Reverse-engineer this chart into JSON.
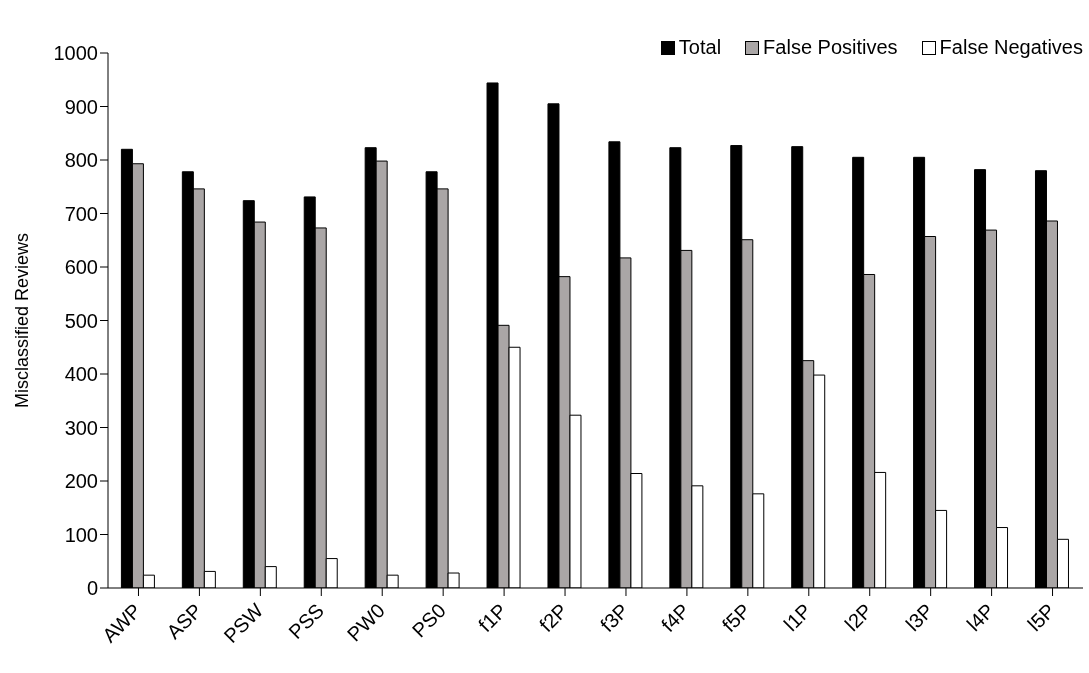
{
  "chart_data": {
    "type": "bar",
    "ylabel": "Misclassified Reviews",
    "categories": [
      "AWP",
      "ASP",
      "PSW",
      "PSS",
      "PW0",
      "PS0",
      "f1P",
      "f2P",
      "f3P",
      "f4P",
      "f5P",
      "l1P",
      "l2P",
      "l3P",
      "l4P",
      "l5P"
    ],
    "series": [
      {
        "name": "Total",
        "color": "#000000",
        "values": [
          820,
          778,
          724,
          731,
          823,
          778,
          944,
          905,
          834,
          823,
          827,
          825,
          805,
          805,
          782,
          780
        ]
      },
      {
        "name": "False Positives",
        "color": "#aaa6a6",
        "values": [
          793,
          746,
          684,
          673,
          798,
          746,
          491,
          582,
          617,
          631,
          651,
          425,
          586,
          657,
          669,
          686
        ]
      },
      {
        "name": "False Negatives",
        "color": "#ffffff",
        "values": [
          24,
          31,
          40,
          55,
          24,
          28,
          450,
          323,
          214,
          191,
          176,
          398,
          216,
          145,
          113,
          91
        ]
      }
    ],
    "ylim": [
      0,
      1000
    ],
    "yticks": [
      0,
      100,
      200,
      300,
      400,
      500,
      600,
      700,
      800,
      900,
      1000
    ],
    "legend": "top right",
    "grid": false
  }
}
